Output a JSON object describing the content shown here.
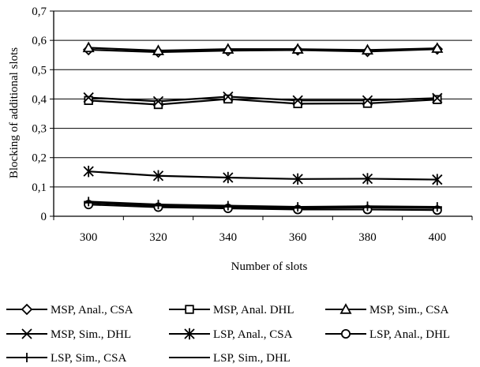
{
  "chart_data": {
    "type": "line",
    "xlabel": "Number of slots",
    "ylabel": "Blocking of additional slots",
    "x": [
      300,
      320,
      340,
      360,
      380,
      400
    ],
    "ylim": [
      0,
      0.7
    ],
    "yticks": [
      0,
      0.1,
      0.2,
      0.3,
      0.4,
      0.5,
      0.6,
      0.7
    ],
    "ytick_labels": [
      "0",
      "0,1",
      "0,2",
      "0,3",
      "0,4",
      "0,5",
      "0,6",
      "0,7"
    ],
    "grid": "horizontal",
    "legend_position": "bottom",
    "series": [
      {
        "name": "MSP, Anal., CSA",
        "marker": "diamond",
        "values": [
          0.568,
          0.56,
          0.565,
          0.567,
          0.562,
          0.57
        ]
      },
      {
        "name": "MSP, Anal. DHL",
        "marker": "square",
        "values": [
          0.395,
          0.381,
          0.4,
          0.384,
          0.385,
          0.398
        ]
      },
      {
        "name": "MSP, Sim., CSA",
        "marker": "triangle",
        "values": [
          0.575,
          0.565,
          0.57,
          0.57,
          0.567,
          0.573
        ]
      },
      {
        "name": "MSP, Sim., DHL",
        "marker": "x",
        "values": [
          0.405,
          0.392,
          0.408,
          0.395,
          0.395,
          0.403
        ]
      },
      {
        "name": "LSP, Anal., CSA",
        "marker": "asterisk",
        "values": [
          0.153,
          0.138,
          0.132,
          0.127,
          0.128,
          0.125
        ]
      },
      {
        "name": "LSP, Anal., DHL",
        "marker": "circle",
        "values": [
          0.04,
          0.031,
          0.027,
          0.023,
          0.023,
          0.021
        ]
      },
      {
        "name": "LSP, Sim., CSA",
        "marker": "plus",
        "values": [
          0.05,
          0.04,
          0.036,
          0.032,
          0.034,
          0.032
        ]
      },
      {
        "name": "LSP, Sim., DHL",
        "marker": "dash",
        "values": [
          0.046,
          0.036,
          0.032,
          0.028,
          0.03,
          0.028
        ]
      }
    ]
  }
}
